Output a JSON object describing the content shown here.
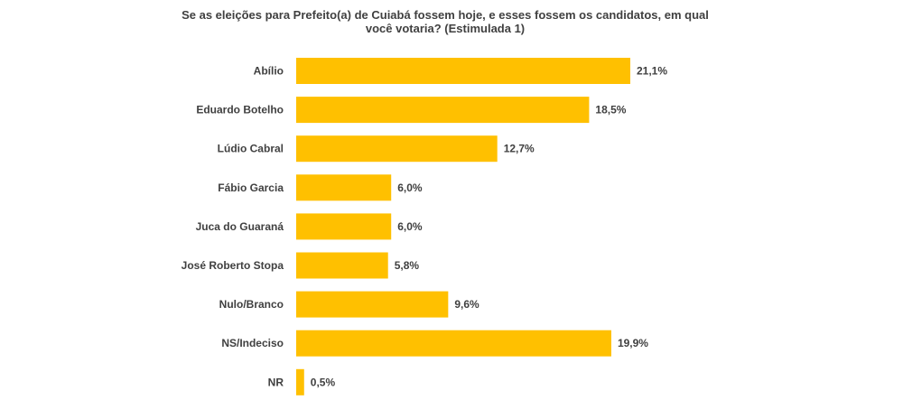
{
  "chart_data": {
    "type": "bar",
    "orientation": "horizontal",
    "title": "Se as eleições para Prefeito(a) de Cuiabá fossem hoje, e esses fossem os candidatos, em qual você votaria? (Estimulada 1)",
    "title_lines": [
      "Se as eleições para Prefeito(a) de Cuiabá fossem hoje, e esses fossem os candidatos, em qual",
      "você votaria? (Estimulada 1)"
    ],
    "categories": [
      "Abílio",
      "Eduardo Botelho",
      "Lúdio Cabral",
      "Fábio Garcia",
      "Juca do Guaraná",
      "José Roberto Stopa",
      "Nulo/Branco",
      "NS/Indeciso",
      "NR"
    ],
    "values": [
      21.1,
      18.5,
      12.7,
      6.0,
      6.0,
      5.8,
      9.6,
      19.9,
      0.5
    ],
    "value_labels": [
      "21,1%",
      "18,5%",
      "12,7%",
      "6,0%",
      "6,0%",
      "5,8%",
      "9,6%",
      "19,9%",
      "0,5%"
    ],
    "xlim": [
      0,
      21.1
    ],
    "grid": false,
    "legend": "none",
    "bar_color": "#FFC000"
  }
}
